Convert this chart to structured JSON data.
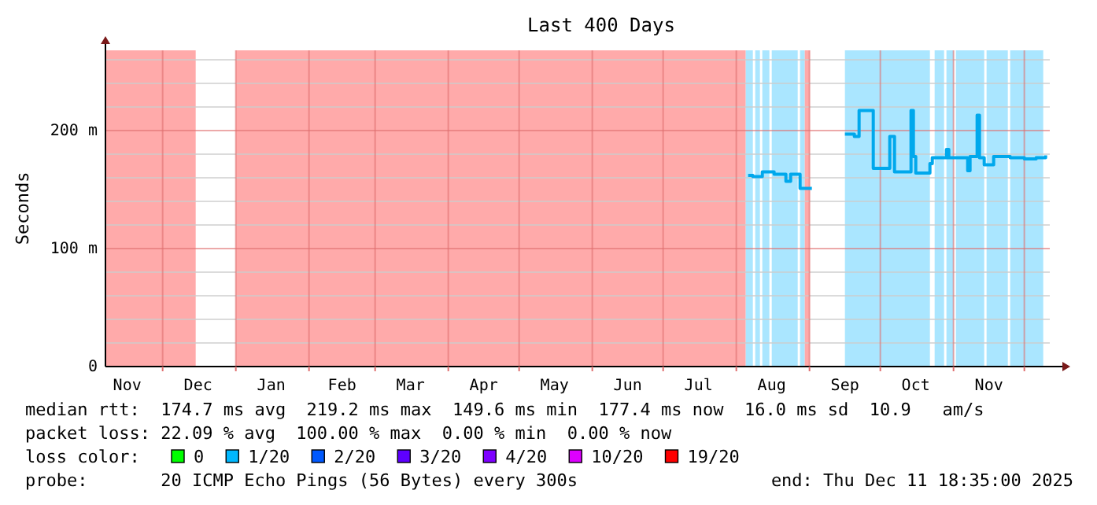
{
  "chart_data": {
    "type": "step",
    "title": "Last 400 Days",
    "ylabel": "Seconds",
    "xlim": [
      "2024-11-06T18:35",
      "2025-12-11T18:35"
    ],
    "xticks": [
      {
        "value": "2024-11-16",
        "label": "Nov"
      },
      {
        "value": "2024-12-01",
        "label": null
      },
      {
        "value": "2024-12-16",
        "label": "Dec"
      },
      {
        "value": "2025-01-01",
        "label": null
      },
      {
        "value": "2025-01-16",
        "label": "Jan"
      },
      {
        "value": "2025-02-01",
        "label": null
      },
      {
        "value": "2025-02-15",
        "label": "Feb"
      },
      {
        "value": "2025-03-01",
        "label": null
      },
      {
        "value": "2025-03-16",
        "label": "Mar"
      },
      {
        "value": "2025-04-01",
        "label": null
      },
      {
        "value": "2025-04-16",
        "label": "Apr"
      },
      {
        "value": "2025-05-01",
        "label": null
      },
      {
        "value": "2025-05-16",
        "label": "May"
      },
      {
        "value": "2025-06-01",
        "label": null
      },
      {
        "value": "2025-06-16",
        "label": "Jun"
      },
      {
        "value": "2025-07-01",
        "label": null
      },
      {
        "value": "2025-07-16",
        "label": "Jul"
      },
      {
        "value": "2025-08-01",
        "label": null
      },
      {
        "value": "2025-08-16",
        "label": "Aug"
      },
      {
        "value": "2025-09-01",
        "label": null
      },
      {
        "value": "2025-09-16",
        "label": "Sep"
      },
      {
        "value": "2025-10-01",
        "label": null
      },
      {
        "value": "2025-10-16",
        "label": "Oct"
      },
      {
        "value": "2025-11-01",
        "label": null
      },
      {
        "value": "2025-11-16",
        "label": "Nov"
      },
      {
        "value": "2025-12-01",
        "label": null
      }
    ],
    "ylim": [
      0,
      268
    ],
    "yticks": [
      {
        "value": 0,
        "label": "0"
      },
      {
        "value": 20,
        "label": null
      },
      {
        "value": 40,
        "label": null
      },
      {
        "value": 60,
        "label": null
      },
      {
        "value": 80,
        "label": null
      },
      {
        "value": 100,
        "label": "100 m"
      },
      {
        "value": 120,
        "label": null
      },
      {
        "value": 140,
        "label": null
      },
      {
        "value": 160,
        "label": null
      },
      {
        "value": 180,
        "label": null
      },
      {
        "value": 200,
        "label": "200 m"
      },
      {
        "value": 220,
        "label": null
      },
      {
        "value": 240,
        "label": null
      },
      {
        "value": 260,
        "label": null
      }
    ],
    "grid": true,
    "bands": [
      {
        "axis": "x",
        "from": "2024-11-06T18:35",
        "to": "2024-12-15",
        "color": "#ffaaaa"
      },
      {
        "axis": "x",
        "from": "2025-01-01",
        "to": "2025-08-05",
        "color": "#ffaaaa"
      },
      {
        "axis": "x",
        "from": "2025-08-05",
        "to": "2025-08-08",
        "color": "#aae6ff"
      },
      {
        "axis": "x",
        "from": "2025-08-09",
        "to": "2025-08-11",
        "color": "#aae6ff"
      },
      {
        "axis": "x",
        "from": "2025-08-12",
        "to": "2025-08-15",
        "color": "#aae6ff"
      },
      {
        "axis": "x",
        "from": "2025-08-16",
        "to": "2025-08-27",
        "color": "#aae6ff"
      },
      {
        "axis": "x",
        "from": "2025-08-28",
        "to": "2025-08-30",
        "color": "#aae6ff"
      },
      {
        "axis": "x",
        "from": "2025-08-30",
        "to": "2025-09-01",
        "color": "#ffaaaa"
      },
      {
        "axis": "x",
        "from": "2025-09-16",
        "to": "2025-10-22",
        "color": "#aae6ff"
      },
      {
        "axis": "x",
        "from": "2025-10-24",
        "to": "2025-10-28",
        "color": "#aae6ff"
      },
      {
        "axis": "x",
        "from": "2025-10-29",
        "to": "2025-11-01",
        "color": "#aae6ff"
      },
      {
        "axis": "x",
        "from": "2025-11-02",
        "to": "2025-11-14",
        "color": "#aae6ff"
      },
      {
        "axis": "x",
        "from": "2025-11-15",
        "to": "2025-11-24",
        "color": "#aae6ff"
      },
      {
        "axis": "x",
        "from": "2025-11-25",
        "to": "2025-12-09",
        "color": "#aae6ff"
      }
    ],
    "series": [
      {
        "color": "#00a8ec",
        "x": [
          "2025-08-06",
          "2025-08-08",
          "2025-08-12",
          "2025-08-17",
          "2025-08-22",
          "2025-08-24",
          "2025-08-28",
          "2025-09-02",
          "2025-09-03",
          "2025-09-16",
          "2025-09-20",
          "2025-09-22",
          "2025-09-28",
          "2025-10-05",
          "2025-10-07",
          "2025-10-14",
          "2025-10-15",
          "2025-10-16",
          "2025-10-22",
          "2025-10-23",
          "2025-10-29",
          "2025-10-30",
          "2025-11-07",
          "2025-11-08",
          "2025-11-11",
          "2025-11-12",
          "2025-11-14",
          "2025-11-18",
          "2025-11-25",
          "2025-12-01",
          "2025-12-06",
          "2025-12-10"
        ],
        "values": [
          162,
          161,
          165,
          163,
          157,
          163,
          151,
          151,
          null,
          197,
          195,
          217,
          168,
          195,
          165,
          217,
          178,
          164,
          172,
          177,
          184,
          177,
          166,
          178,
          213,
          177,
          171,
          178,
          177,
          176,
          177,
          179
        ]
      }
    ],
    "annotations": [
      "median rtt:  174.7 ms avg  219.2 ms max  149.6 ms min  177.4 ms now  16.0 ms sd  10.9   am/s",
      "packet loss: 22.09 % avg  100.00 % max  0.00 % min  0.00 % now",
      "loss color:",
      "0",
      "1/20",
      "2/20",
      "3/20",
      "4/20",
      "10/20",
      "19/20",
      "probe:       20 ICMP Echo Pings (56 Bytes) every 300s",
      "end: Thu Dec 11 18:35:00 2025"
    ]
  }
}
